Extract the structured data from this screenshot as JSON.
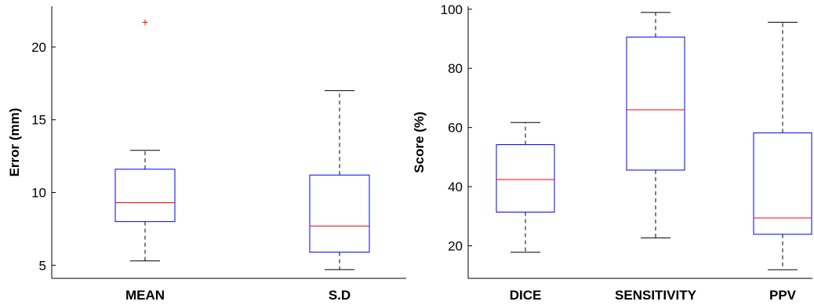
{
  "colors": {
    "box": "#0000ff",
    "median": "#ff0000",
    "whisker": "#000000",
    "outlier": "#ff0000"
  },
  "chart_data": [
    {
      "type": "boxplot",
      "title": "",
      "ylabel": "Error (mm)",
      "ylim": [
        4.1,
        22.8
      ],
      "yticks": [
        5,
        10,
        15,
        20
      ],
      "grid": false,
      "categories": [
        "MEAN",
        "S.D"
      ],
      "boxes": [
        {
          "category": "MEAN",
          "whisker_low": 5.3,
          "q1": 8.0,
          "median": 9.3,
          "q3": 11.6,
          "whisker_high": 12.9,
          "outliers": [
            21.7
          ]
        },
        {
          "category": "S.D",
          "whisker_low": 4.7,
          "q1": 5.9,
          "median": 7.7,
          "q3": 11.2,
          "whisker_high": 17.0,
          "outliers": []
        }
      ]
    },
    {
      "type": "boxplot",
      "title": "",
      "ylabel": "Score (%)",
      "ylim": [
        9,
        101
      ],
      "yticks": [
        20,
        40,
        60,
        80,
        100
      ],
      "grid": false,
      "categories": [
        "DICE",
        "SENSITIVITY",
        "PPV"
      ],
      "boxes": [
        {
          "category": "DICE",
          "whisker_low": 17.8,
          "q1": 31.4,
          "median": 42.4,
          "q3": 54.2,
          "whisker_high": 61.7,
          "outliers": []
        },
        {
          "category": "SENSITIVITY",
          "whisker_low": 22.7,
          "q1": 45.6,
          "median": 66.0,
          "q3": 90.6,
          "whisker_high": 98.9,
          "outliers": []
        },
        {
          "category": "PPV",
          "whisker_low": 11.9,
          "q1": 23.9,
          "median": 29.4,
          "q3": 58.2,
          "whisker_high": 95.6,
          "outliers": []
        }
      ]
    }
  ]
}
